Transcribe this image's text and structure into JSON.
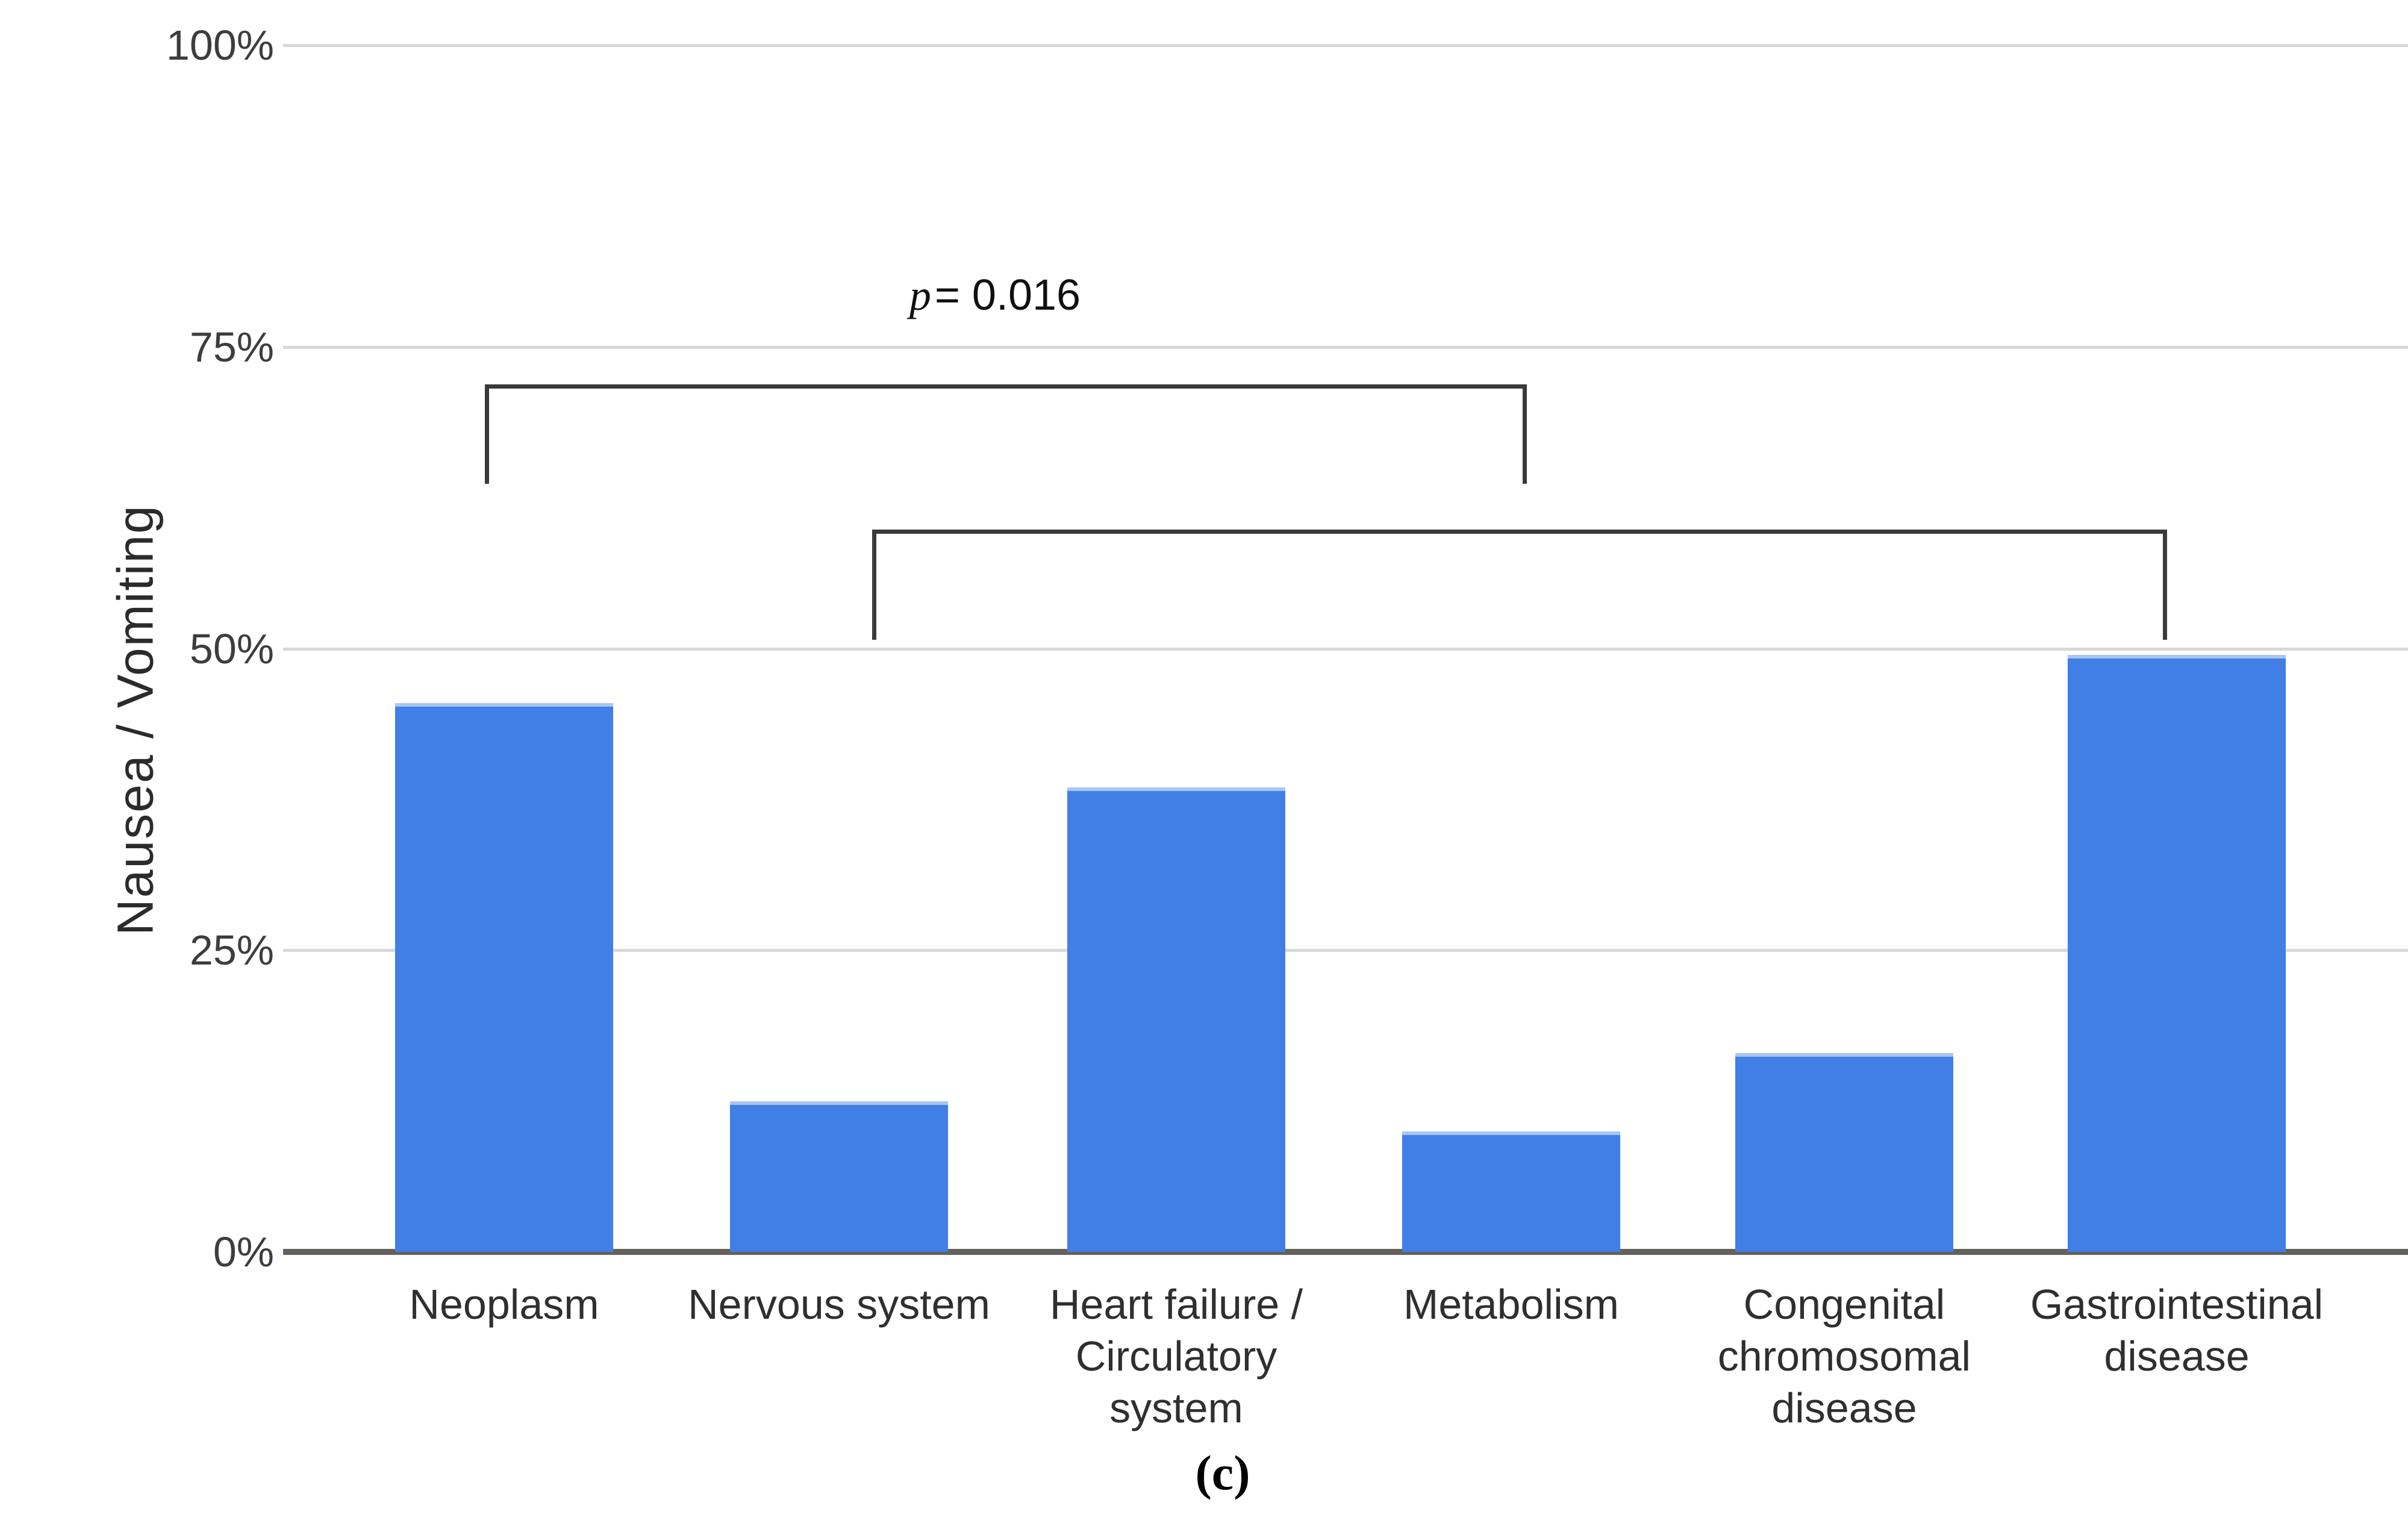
{
  "figure": {
    "caption": "(c)",
    "p_annotation": {
      "symbol": "p",
      "text": "= 0.016",
      "full": "p = 0.016"
    }
  },
  "chart_data": {
    "type": "bar",
    "title": "",
    "xlabel": "",
    "ylabel": "Nausea / Vomiting",
    "categories": [
      "Neoplasm",
      "Nervous system",
      "Heart failure / Circulatory system",
      "Metabolism",
      "Congenital chromosomal disease",
      "Gastrointestinal disease"
    ],
    "category_lines": [
      [
        "Neoplasm"
      ],
      [
        "Nervous system"
      ],
      [
        "Heart failure /",
        "Circulatory",
        "system"
      ],
      [
        "Metabolism"
      ],
      [
        "Congenital",
        "chromosomal",
        "disease"
      ],
      [
        "Gastrointestinal",
        "disease"
      ]
    ],
    "values_percent": [
      45.5,
      12.5,
      38.5,
      10,
      16.5,
      49.5
    ],
    "y_ticks": [
      "0%",
      "25%",
      "50%",
      "75%",
      "100%"
    ],
    "y_tick_values": [
      0,
      25,
      50,
      75,
      100
    ],
    "ylim": [
      0,
      100
    ],
    "grid": true,
    "legend": "none",
    "bar_color": "#417EE6",
    "significance_brackets": [
      {
        "from": "Neoplasm",
        "to": "Metabolism",
        "label": "p = 0.016"
      },
      {
        "from": "Nervous system",
        "to": "Gastrointestinal disease",
        "label": ""
      }
    ]
  }
}
